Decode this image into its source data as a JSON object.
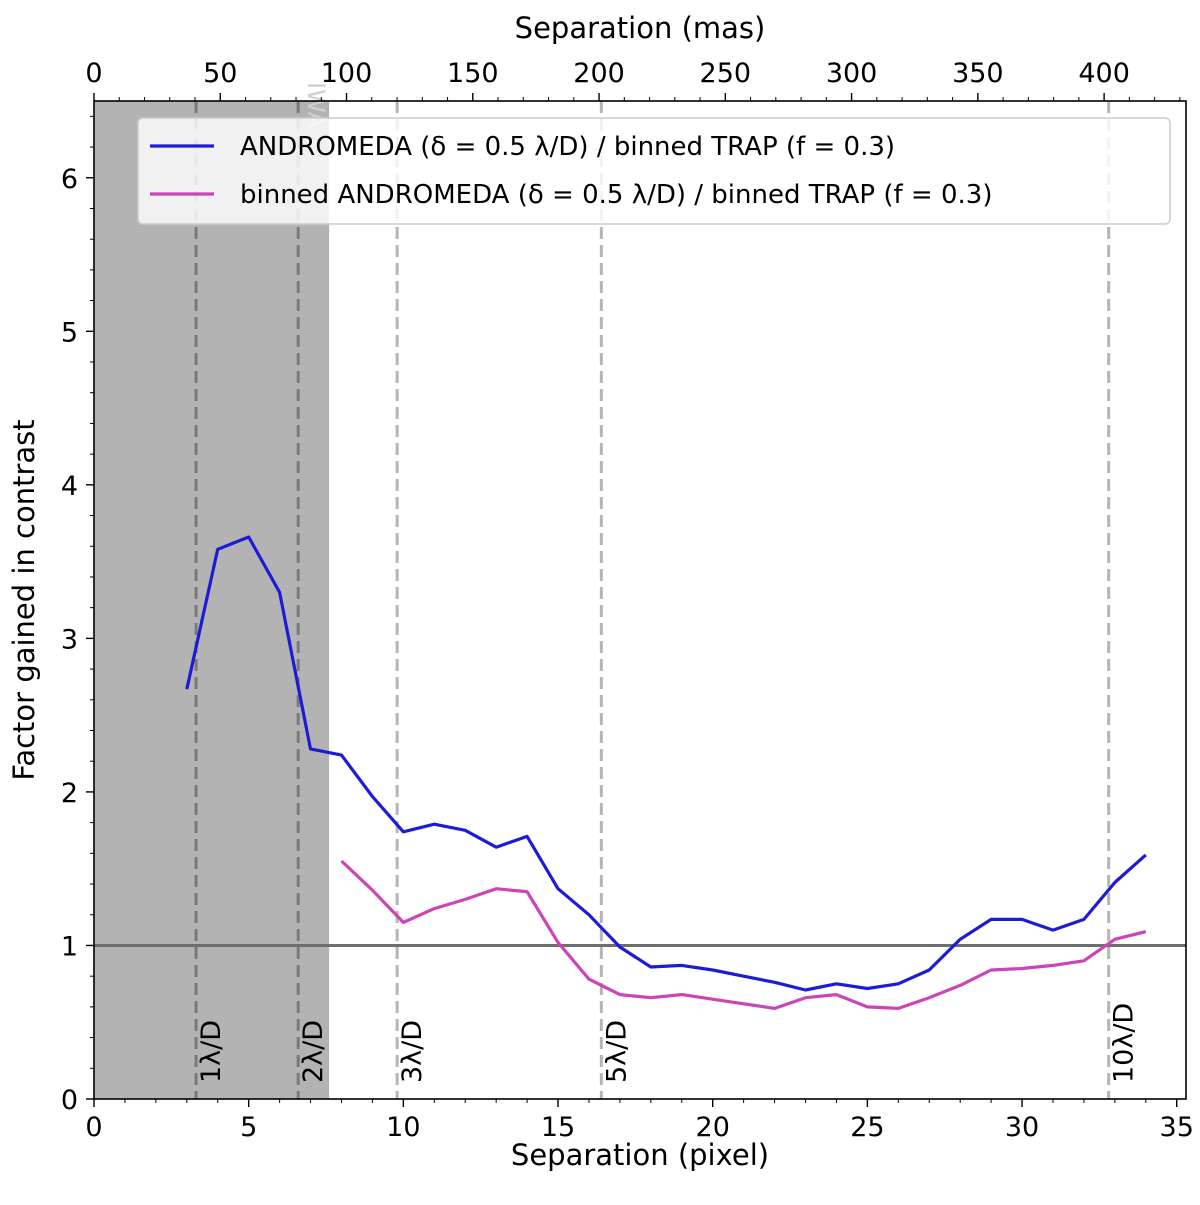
{
  "chart_data": {
    "type": "line",
    "xlabel": "Separation (pixel)",
    "ylabel": "Factor gained in contrast",
    "top_xlabel": "Separation (mas)",
    "xlim": [
      0,
      35.3
    ],
    "ylim": [
      0,
      6.5
    ],
    "x_ticks": [
      "0",
      "5",
      "10",
      "15",
      "20",
      "25",
      "30",
      "35"
    ],
    "y_ticks": [
      "0",
      "1",
      "2",
      "3",
      "4",
      "5",
      "6"
    ],
    "top_ticks": [
      "0",
      "50",
      "100",
      "150",
      "200",
      "250",
      "300",
      "350",
      "400"
    ],
    "top_scale_mas_per_pixel": 12.25,
    "shaded_region": [
      0,
      7.6
    ],
    "shaded_region_label": "IWA",
    "reference_line_y": 1,
    "vertical_lines": [
      {
        "x": 3.3,
        "label": "1λ/D"
      },
      {
        "x": 6.6,
        "label": "2λ/D"
      },
      {
        "x": 9.8,
        "label": "3λ/D"
      },
      {
        "x": 16.4,
        "label": "5λ/D"
      },
      {
        "x": 32.8,
        "label": "10λ/D"
      }
    ],
    "legend_position": "top-right",
    "grid": false,
    "series": [
      {
        "name": "ANDROMEDA (δ = 0.5 λ/D) / binned TRAP (f = 0.3)",
        "color": "#1c1cd6",
        "x": [
          3,
          4,
          5,
          6,
          7,
          8,
          9,
          10,
          11,
          12,
          13,
          14,
          15,
          16,
          17,
          18,
          19,
          20,
          21,
          22,
          23,
          24,
          25,
          26,
          27,
          28,
          29,
          30,
          31,
          32,
          33,
          34
        ],
        "y": [
          2.67,
          3.58,
          3.66,
          3.3,
          2.28,
          2.24,
          1.97,
          1.74,
          1.79,
          1.75,
          1.64,
          1.71,
          1.37,
          1.2,
          0.99,
          0.86,
          0.87,
          0.84,
          0.8,
          0.76,
          0.71,
          0.75,
          0.72,
          0.75,
          0.84,
          1.04,
          1.17,
          1.17,
          1.1,
          1.17,
          1.41,
          1.59
        ]
      },
      {
        "name": "binned ANDROMEDA (δ = 0.5 λ/D) / binned TRAP (f = 0.3)",
        "color": "#cc44b8",
        "x": [
          8,
          9,
          10,
          11,
          12,
          13,
          14,
          15,
          16,
          17,
          18,
          19,
          20,
          21,
          22,
          23,
          24,
          25,
          26,
          27,
          28,
          29,
          30,
          31,
          32,
          33,
          34
        ],
        "y": [
          1.55,
          1.36,
          1.15,
          1.24,
          1.3,
          1.37,
          1.35,
          1.02,
          0.78,
          0.68,
          0.66,
          0.68,
          0.65,
          0.62,
          0.59,
          0.66,
          0.68,
          0.6,
          0.59,
          0.66,
          0.74,
          0.84,
          0.85,
          0.87,
          0.9,
          1.04,
          1.09
        ]
      }
    ]
  }
}
